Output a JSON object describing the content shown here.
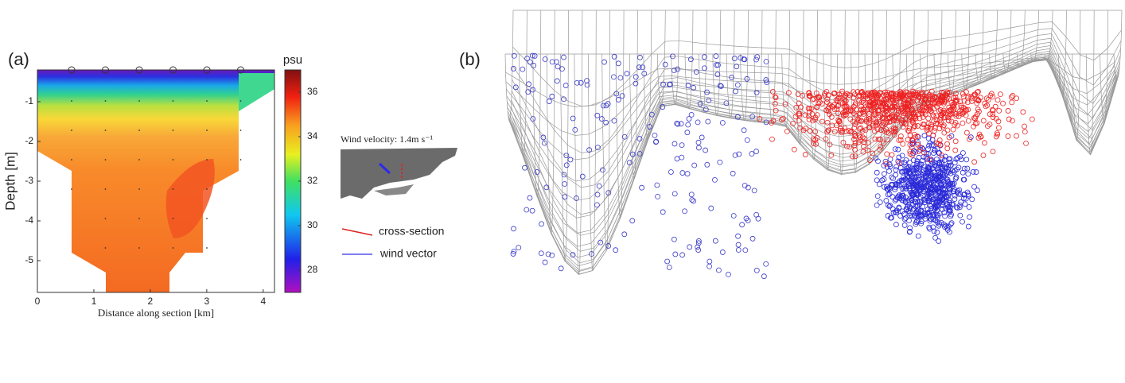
{
  "chart_data": [
    {
      "type": "contour",
      "panel_label": "(a)",
      "xlabel": "Distance along section [km]",
      "ylabel": "Depth [m]",
      "xlim": [
        0,
        4.2
      ],
      "ylim": [
        -5.8,
        -0.2
      ],
      "xticks": [
        0,
        1,
        2,
        3,
        4
      ],
      "yticks": [
        -5,
        -4,
        -3,
        -2,
        -1
      ],
      "colorbar_label": "psu",
      "clim": [
        27,
        37
      ],
      "cticks": [
        28,
        30,
        32,
        34,
        36
      ],
      "inset_title": "Wind velocity: 1.4m s⁻¹",
      "legend": [
        {
          "name": "cross-section",
          "color": "#dd2222"
        },
        {
          "name": "wind vector",
          "color": "#5555ee"
        }
      ]
    },
    {
      "type": "wireframe",
      "panel_label": "(b)"
    }
  ]
}
